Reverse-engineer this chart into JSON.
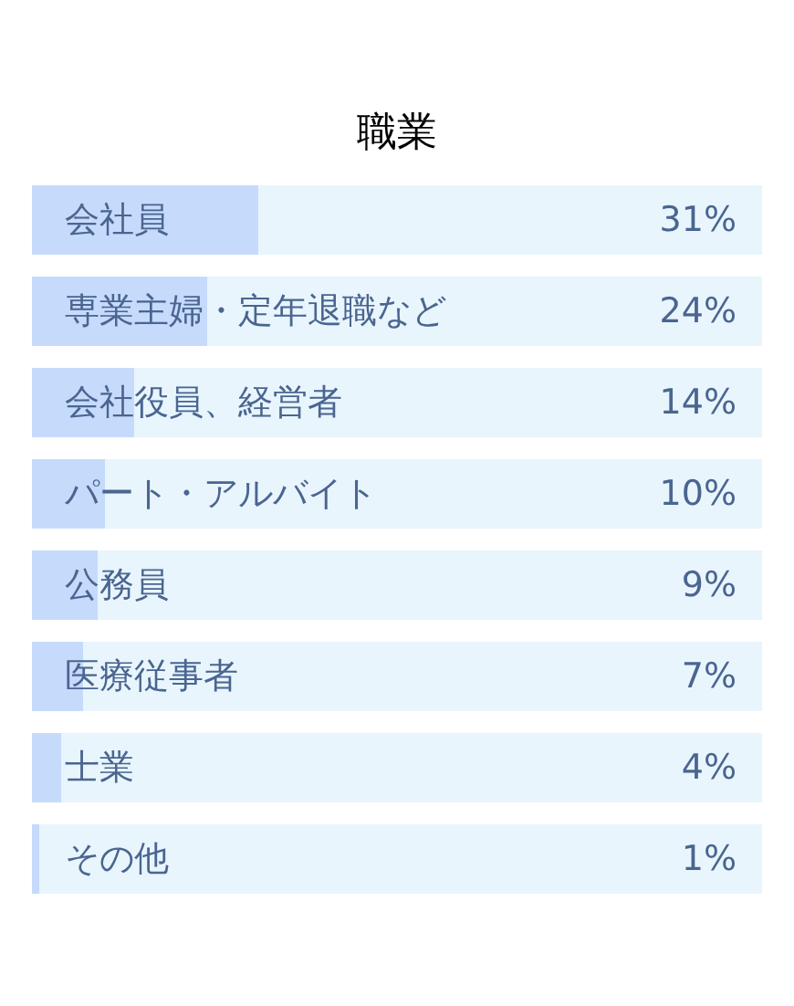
{
  "chart_data": {
    "type": "bar",
    "title": "職業",
    "orientation": "horizontal",
    "categories": [
      "会社員",
      "専業主婦・定年退職など",
      "会社役員、経営者",
      "パート・アルバイト",
      "公務員",
      "医療従事者",
      "士業",
      "その他"
    ],
    "values": [
      31,
      24,
      14,
      10,
      9,
      7,
      4,
      1
    ],
    "color": "#c6dafc",
    "value_labels": [
      "31%",
      "24%",
      "14%",
      "10%",
      "9%",
      "7%",
      "4%",
      "1%"
    ],
    "xlim": [
      0,
      100
    ],
    "tick_labels": false
  }
}
